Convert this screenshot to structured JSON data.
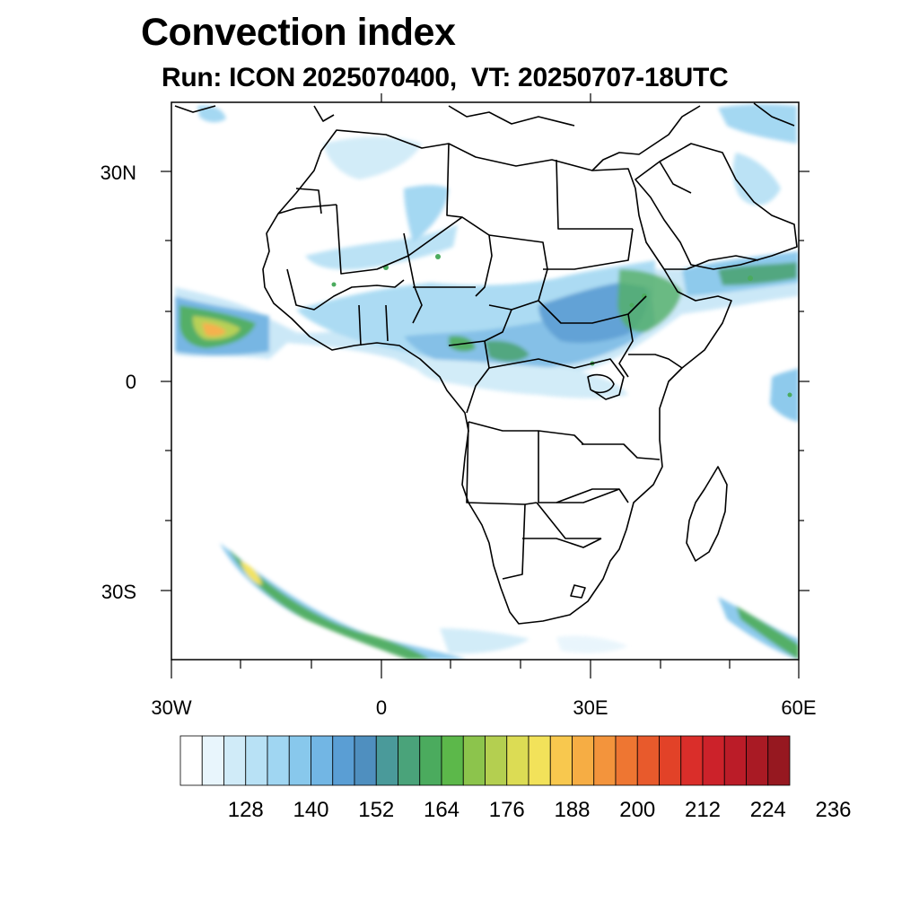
{
  "title": "Convection index",
  "subtitle": "Run: ICON 2025070400,  VT: 20250707-18UTC",
  "map": {
    "region": "Africa",
    "lon_range": [
      -30,
      60
    ],
    "lat_range": [
      -40,
      40
    ],
    "lat_ticks": [
      "30N",
      "0",
      "30S"
    ],
    "lon_ticks": [
      "30W",
      "0",
      "30E",
      "60E"
    ],
    "grid": false
  },
  "colorbar": {
    "labels": [
      "128",
      "140",
      "152",
      "164",
      "176",
      "188",
      "200",
      "212",
      "224",
      "236"
    ],
    "colors": [
      "#ffffff",
      "#e8f5fc",
      "#d0ebf8",
      "#b8e1f5",
      "#a0d6f2",
      "#88c8ec",
      "#72b6e4",
      "#5a9ed4",
      "#4f8fbf",
      "#4a9a9a",
      "#4aa37a",
      "#4bab5e",
      "#5cb84a",
      "#8cc44c",
      "#b4cf50",
      "#dcdc54",
      "#f2e25a",
      "#f8c84e",
      "#f6ad44",
      "#f3943c",
      "#ee7632",
      "#e85a2c",
      "#e24228",
      "#da2e2a",
      "#cc222a",
      "#bb1c28",
      "#a91a24",
      "#961820"
    ]
  },
  "colors": {
    "land_outline": "#000000",
    "field_low": "#b8e1f5",
    "field_mid": "#5a9ed4",
    "field_green": "#4bab5e",
    "field_yellow": "#f2e25a",
    "field_orange": "#f6ad44"
  }
}
